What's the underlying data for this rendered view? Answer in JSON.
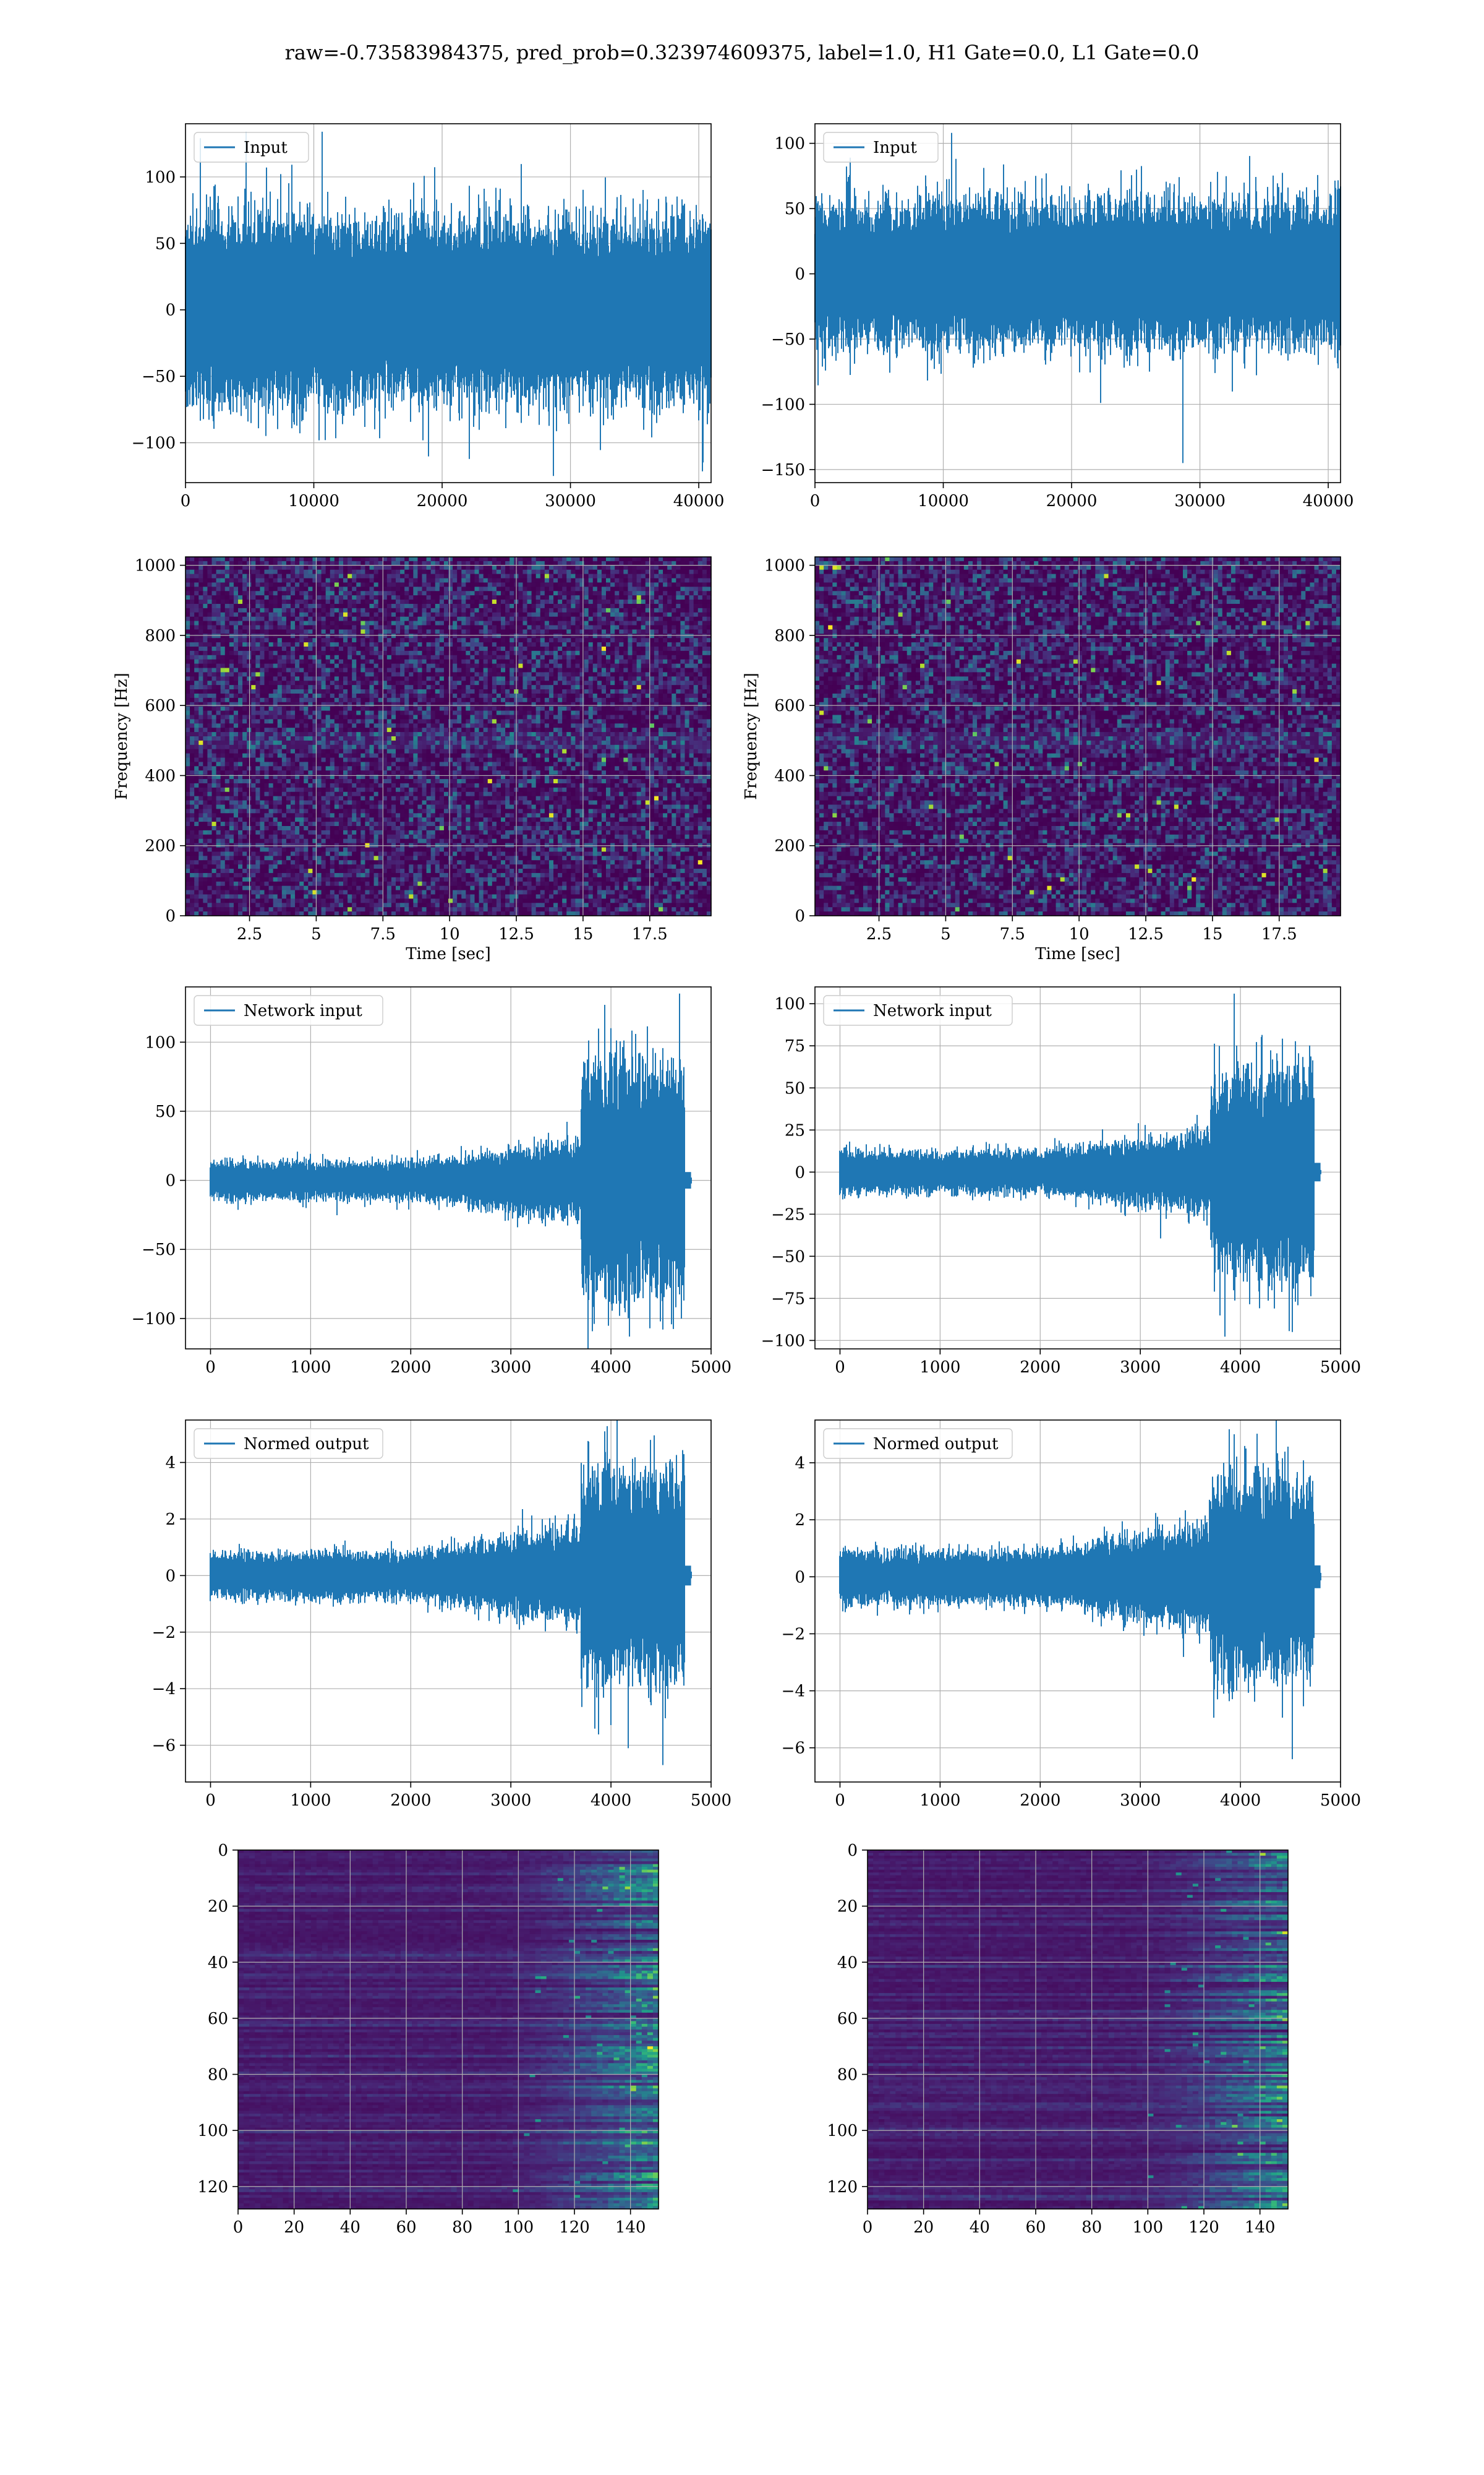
{
  "figure_title": "raw=-0.73583984375, pred_prob=0.323974609375, label=1.0, H1 Gate=0.0, L1 Gate=0.0",
  "colors": {
    "line": "#1f77b4",
    "grid": "#b0b0b0",
    "viridis_low": "#440154",
    "viridis_high": "#fde725"
  },
  "chart_data": [
    {
      "id": "h1-input",
      "type": "line",
      "legend": "Input",
      "xlim": [
        0,
        40960
      ],
      "ylim": [
        -130,
        140
      ],
      "xticks": [
        0,
        10000,
        20000,
        30000,
        40000
      ],
      "yticks": [
        -100,
        -50,
        0,
        50,
        100
      ],
      "envelope": {
        "n": 40960,
        "core_amp": 70,
        "max_amp": 134,
        "min_amp": -125,
        "profile": "flat"
      },
      "grid": true,
      "legend_position": "upper left"
    },
    {
      "id": "l1-input",
      "type": "line",
      "legend": "Input",
      "xlim": [
        0,
        40960
      ],
      "ylim": [
        -160,
        115
      ],
      "xticks": [
        0,
        10000,
        20000,
        30000,
        40000
      ],
      "yticks": [
        -150,
        -100,
        -50,
        0,
        50,
        100
      ],
      "envelope": {
        "n": 40960,
        "core_amp": 55,
        "max_amp": 108,
        "min_amp": -145,
        "profile": "flat"
      },
      "grid": true,
      "legend_position": "upper left"
    },
    {
      "id": "h1-spectrogram",
      "type": "heatmap",
      "xlabel": "Time [sec]",
      "ylabel": "Frequency [Hz]",
      "xlim": [
        0.1,
        19.8
      ],
      "ylim": [
        0,
        1024
      ],
      "xticks": [
        2.5,
        5.0,
        7.5,
        10.0,
        12.5,
        15.0,
        17.5
      ],
      "yticks": [
        0,
        200,
        400,
        600,
        800,
        1000
      ],
      "colormap": "viridis",
      "grid": true
    },
    {
      "id": "l1-spectrogram",
      "type": "heatmap",
      "xlabel": "Time [sec]",
      "ylabel": "Frequency [Hz]",
      "xlim": [
        0.1,
        19.8
      ],
      "ylim": [
        0,
        1024
      ],
      "xticks": [
        2.5,
        5.0,
        7.5,
        10.0,
        12.5,
        15.0,
        17.5
      ],
      "yticks": [
        0,
        200,
        400,
        600,
        800,
        1000
      ],
      "colormap": "viridis",
      "grid": true
    },
    {
      "id": "h1-network-input",
      "type": "line",
      "legend": "Network input",
      "xlim": [
        -250,
        5000
      ],
      "ylim": [
        -122,
        140
      ],
      "xticks": [
        0,
        1000,
        2000,
        3000,
        4000,
        5000
      ],
      "yticks": [
        -100,
        -50,
        0,
        50,
        100
      ],
      "envelope": {
        "n": 4800,
        "base_amp": 12,
        "rise_start": 2000,
        "rise_amp": 25,
        "burst_start": 3700,
        "burst_end": 4740,
        "burst_amp": 75,
        "max_amp": 127,
        "min_amp": -108,
        "tail_end": 4800
      },
      "grid": true,
      "legend_position": "upper left"
    },
    {
      "id": "l1-network-input",
      "type": "line",
      "legend": "Network input",
      "xlim": [
        -250,
        5000
      ],
      "ylim": [
        -105,
        110
      ],
      "xticks": [
        0,
        1000,
        2000,
        3000,
        4000,
        5000
      ],
      "yticks": [
        -100,
        -75,
        -50,
        -25,
        0,
        25,
        50,
        75,
        100
      ],
      "envelope": {
        "n": 4800,
        "base_amp": 11,
        "rise_start": 2000,
        "rise_amp": 22,
        "burst_start": 3700,
        "burst_end": 4740,
        "burst_amp": 55,
        "max_amp": 106,
        "min_amp": -95,
        "tail_end": 4800
      },
      "grid": true,
      "legend_position": "upper left"
    },
    {
      "id": "h1-normed-output",
      "type": "line",
      "legend": "Normed output",
      "xlim": [
        -250,
        5000
      ],
      "ylim": [
        -7.3,
        5.5
      ],
      "xticks": [
        0,
        1000,
        2000,
        3000,
        4000,
        5000
      ],
      "yticks": [
        -6,
        -4,
        -2,
        0,
        2,
        4
      ],
      "envelope": {
        "n": 4800,
        "base_amp": 0.7,
        "rise_start": 2000,
        "rise_amp": 1.5,
        "burst_start": 3700,
        "burst_end": 4740,
        "burst_amp": 3.2,
        "max_amp": 5.1,
        "min_amp": -6.7,
        "tail_end": 4800
      },
      "grid": true,
      "legend_position": "upper left"
    },
    {
      "id": "l1-normed-output",
      "type": "line",
      "legend": "Normed output",
      "xlim": [
        -250,
        5000
      ],
      "ylim": [
        -7.2,
        5.5
      ],
      "xticks": [
        0,
        1000,
        2000,
        3000,
        4000,
        5000
      ],
      "yticks": [
        -6,
        -4,
        -2,
        0,
        2,
        4
      ],
      "envelope": {
        "n": 4800,
        "base_amp": 0.8,
        "rise_start": 2000,
        "rise_amp": 1.6,
        "burst_start": 3700,
        "burst_end": 4740,
        "burst_amp": 3.0,
        "max_amp": 5.0,
        "min_amp": -6.4,
        "tail_end": 4800
      },
      "grid": true,
      "legend_position": "upper left"
    },
    {
      "id": "h1-feature-map",
      "type": "heatmap",
      "xlim": [
        0,
        150
      ],
      "ylim": [
        128,
        0
      ],
      "xticks": [
        0,
        20,
        40,
        60,
        80,
        100,
        120,
        140
      ],
      "yticks": [
        0,
        20,
        40,
        60,
        80,
        100,
        120
      ],
      "colormap": "viridis",
      "grid": true,
      "activation_onset_col": 100
    },
    {
      "id": "l1-feature-map",
      "type": "heatmap",
      "xlim": [
        0,
        150
      ],
      "ylim": [
        128,
        0
      ],
      "xticks": [
        0,
        20,
        40,
        60,
        80,
        100,
        120,
        140
      ],
      "yticks": [
        0,
        20,
        40,
        60,
        80,
        100,
        120
      ],
      "colormap": "viridis",
      "grid": true,
      "activation_onset_col": 100
    }
  ]
}
